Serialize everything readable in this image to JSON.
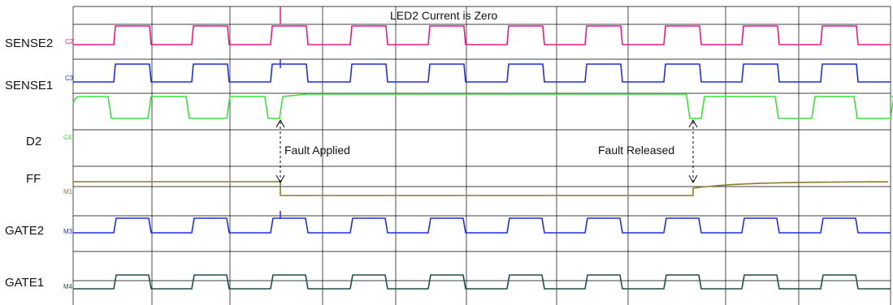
{
  "signals": [
    {
      "id": "sense2",
      "label": "SENSE2",
      "marker": "C2",
      "color": "#e8198b"
    },
    {
      "id": "sense1",
      "label": "SENSE1",
      "marker": "C3",
      "color": "#1f2fd6"
    },
    {
      "id": "d2",
      "label": "D2",
      "marker": "C4",
      "color": "#39e23a"
    },
    {
      "id": "ff",
      "label": "FF",
      "marker": "M1",
      "color": "#8a7d2a"
    },
    {
      "id": "gate2",
      "label": "GATE2",
      "marker": "M3",
      "color": "#1f2fd6"
    },
    {
      "id": "gate1",
      "label": "GATE1",
      "marker": "M4",
      "color": "#1d4f4c"
    }
  ],
  "annotations": {
    "top_note": "LED2 Current is Zero",
    "fault_applied": "Fault Applied",
    "fault_released": "Fault Released"
  },
  "grid_color": "#000000"
}
